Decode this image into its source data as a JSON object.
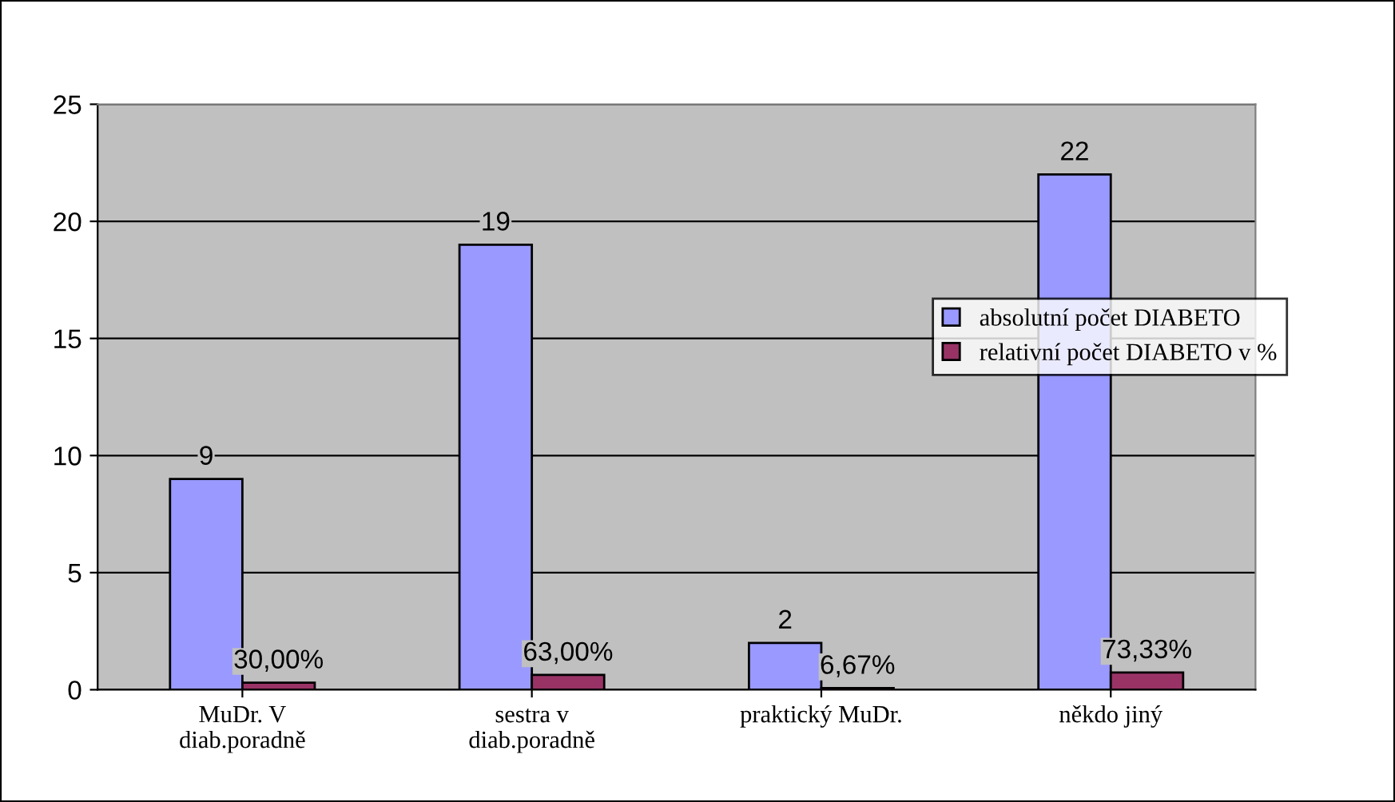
{
  "chart_data": {
    "type": "bar",
    "categories": [
      "MuDr. V\ndiab.poradně",
      "sestra v\ndiab.poradně",
      "praktický MuDr.",
      "někdo jiný"
    ],
    "series": [
      {
        "name": "absolutní počet DIABETO",
        "color": "#9999ff",
        "values": [
          9,
          19,
          2,
          22
        ],
        "value_labels": [
          "9",
          "19",
          "2",
          "22"
        ]
      },
      {
        "name": "relativní počet DIABETO v %",
        "color": "#993366",
        "values": [
          0.3,
          0.63,
          0.0667,
          0.7333
        ],
        "value_labels": [
          "30,00%",
          "63,00%",
          "6,67%",
          "73,33%"
        ]
      }
    ],
    "ylim": [
      0,
      25
    ],
    "yticks": [
      0,
      5,
      10,
      15,
      20,
      25
    ],
    "grid": "y",
    "legend": "right"
  }
}
